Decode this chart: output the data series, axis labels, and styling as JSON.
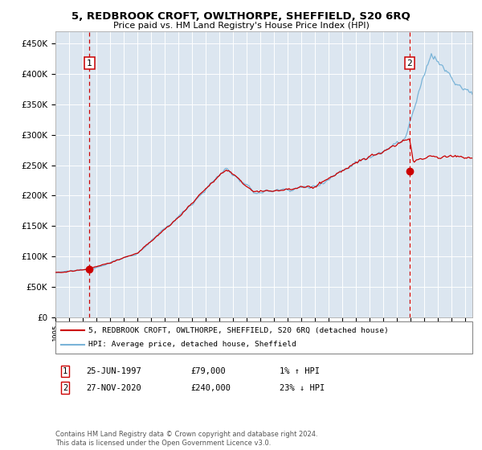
{
  "title": "5, REDBROOK CROFT, OWLTHORPE, SHEFFIELD, S20 6RQ",
  "subtitle": "Price paid vs. HM Land Registry's House Price Index (HPI)",
  "legend_line1": "5, REDBROOK CROFT, OWLTHORPE, SHEFFIELD, S20 6RQ (detached house)",
  "legend_line2": "HPI: Average price, detached house, Sheffield",
  "purchase1_date": "25-JUN-1997",
  "purchase1_price": 79000,
  "purchase1_label": "1% ↑ HPI",
  "purchase2_date": "27-NOV-2020",
  "purchase2_price": 240000,
  "purchase2_label": "23% ↓ HPI",
  "purchase1_year": 1997.49,
  "purchase2_year": 2020.91,
  "ylim_max": 470000,
  "xlim_start": 1995.0,
  "xlim_end": 2025.5,
  "plot_bg_color": "#dce6f0",
  "hpi_color": "#7ab4d8",
  "price_color": "#cc0000",
  "vline_color": "#cc0000",
  "marker_color": "#cc0000",
  "grid_color": "#ffffff",
  "footnote": "Contains HM Land Registry data © Crown copyright and database right 2024.\nThis data is licensed under the Open Government Licence v3.0."
}
